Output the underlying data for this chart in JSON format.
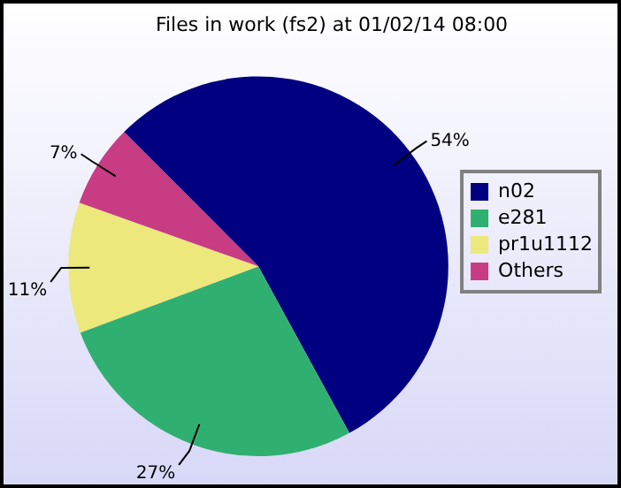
{
  "chart_data": {
    "type": "pie",
    "title": "Files in work (fs2) at 01/02/14 08:00",
    "categories": [
      "n02",
      "e281",
      "pr1u1112",
      "Others"
    ],
    "values": [
      54,
      27,
      11,
      7
    ],
    "colors": [
      "#000080",
      "#30b070",
      "#ece87c",
      "#c83c84"
    ],
    "value_labels": [
      "54%",
      "27%",
      "11%",
      "7%"
    ],
    "legend": "right"
  }
}
